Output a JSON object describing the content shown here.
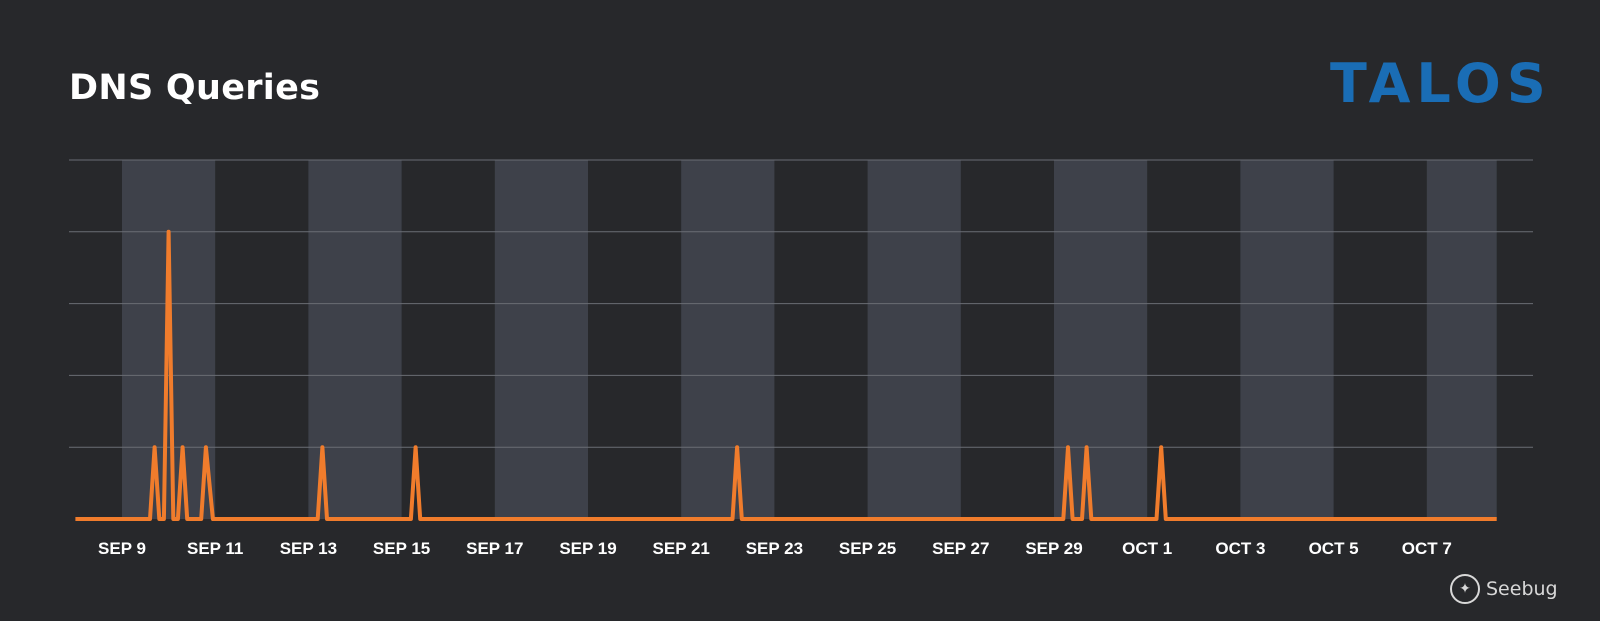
{
  "title": "DNS Queries",
  "logo": "TALOS",
  "watermark": "Seebug",
  "colors": {
    "background": "#27282b",
    "band": "#3e414a",
    "grid": "#6a6d74",
    "line": "#f07c2c",
    "logo": "#1a6db5"
  },
  "chart_data": {
    "type": "line",
    "title": "DNS Queries",
    "xlabel": "",
    "ylabel": "",
    "x_ticks": [
      "SEP 9",
      "SEP 11",
      "SEP 13",
      "SEP 15",
      "SEP 17",
      "SEP 19",
      "SEP 21",
      "SEP 23",
      "SEP 25",
      "SEP 27",
      "SEP 29",
      "OCT 1",
      "OCT 3",
      "OCT 5",
      "OCT 7"
    ],
    "x_tick_days": [
      0,
      2,
      4,
      6,
      8,
      10,
      12,
      14,
      16,
      18,
      20,
      22,
      24,
      26,
      28
    ],
    "xlim": [
      -1,
      29.5
    ],
    "ylim": [
      0,
      5
    ],
    "y_gridlines": [
      1,
      2,
      3,
      4,
      5
    ],
    "grid": true,
    "legend": "none",
    "shaded_bands_days": [
      [
        0,
        2
      ],
      [
        4,
        6
      ],
      [
        8,
        10
      ],
      [
        12,
        14
      ],
      [
        16,
        18
      ],
      [
        20,
        22
      ],
      [
        24,
        26
      ],
      [
        28,
        29.5
      ]
    ],
    "series": [
      {
        "values": [
          [
            -1,
            0
          ],
          [
            0.6,
            0
          ],
          [
            0.7,
            1
          ],
          [
            0.8,
            0
          ],
          [
            0.9,
            0
          ],
          [
            1.0,
            4
          ],
          [
            1.1,
            0
          ],
          [
            1.2,
            0
          ],
          [
            1.3,
            1
          ],
          [
            1.4,
            0
          ],
          [
            1.7,
            0
          ],
          [
            1.8,
            1
          ],
          [
            1.95,
            0
          ],
          [
            4.2,
            0
          ],
          [
            4.3,
            1
          ],
          [
            4.4,
            0
          ],
          [
            6.2,
            0
          ],
          [
            6.3,
            1
          ],
          [
            6.4,
            0
          ],
          [
            13.1,
            0
          ],
          [
            13.2,
            1
          ],
          [
            13.3,
            0
          ],
          [
            20.2,
            0
          ],
          [
            20.3,
            1
          ],
          [
            20.4,
            0
          ],
          [
            20.6,
            0
          ],
          [
            20.7,
            1
          ],
          [
            20.8,
            0
          ],
          [
            22.2,
            0
          ],
          [
            22.3,
            1
          ],
          [
            22.4,
            0
          ],
          [
            29.5,
            0
          ]
        ]
      }
    ]
  }
}
